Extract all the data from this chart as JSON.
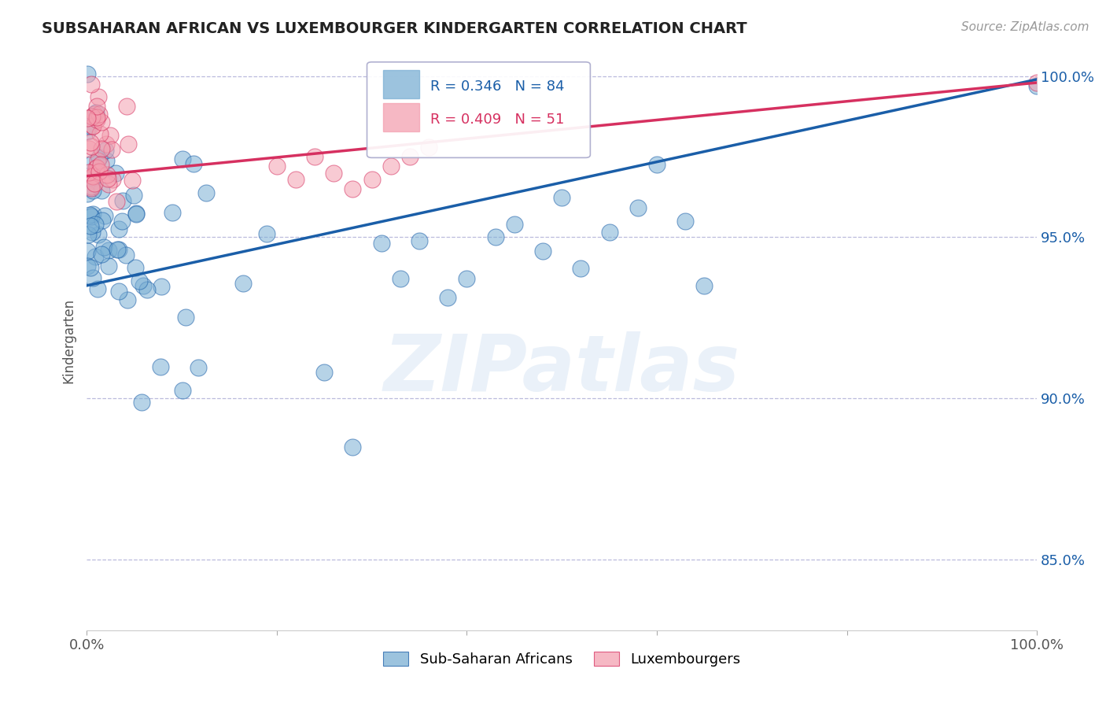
{
  "title": "SUBSAHARAN AFRICAN VS LUXEMBOURGER KINDERGARTEN CORRELATION CHART",
  "source": "Source: ZipAtlas.com",
  "ylabel": "Kindergarten",
  "xlim": [
    0.0,
    1.0
  ],
  "ylim": [
    0.828,
    1.008
  ],
  "yticks": [
    0.85,
    0.9,
    0.95,
    1.0
  ],
  "ytick_labels": [
    "85.0%",
    "90.0%",
    "95.0%",
    "100.0%"
  ],
  "xticks": [
    0.0,
    0.2,
    0.4,
    0.6,
    0.8,
    1.0
  ],
  "xtick_labels": [
    "0.0%",
    "",
    "",
    "",
    "",
    "100.0%"
  ],
  "blue_R": 0.346,
  "blue_N": 84,
  "pink_R": 0.409,
  "pink_N": 51,
  "legend_label_blue": "Sub-Saharan Africans",
  "legend_label_pink": "Luxembourgers",
  "blue_color": "#7BAFD4",
  "pink_color": "#F4A0B0",
  "blue_line_color": "#1A5EA8",
  "pink_line_color": "#D63060",
  "watermark": "ZIPatlas",
  "grid_color": "#BBBBDD",
  "blue_trend_x0": 0.0,
  "blue_trend_y0": 0.935,
  "blue_trend_x1": 1.0,
  "blue_trend_y1": 0.999,
  "pink_trend_x0": 0.0,
  "pink_trend_y0": 0.969,
  "pink_trend_x1": 1.0,
  "pink_trend_y1": 0.998
}
